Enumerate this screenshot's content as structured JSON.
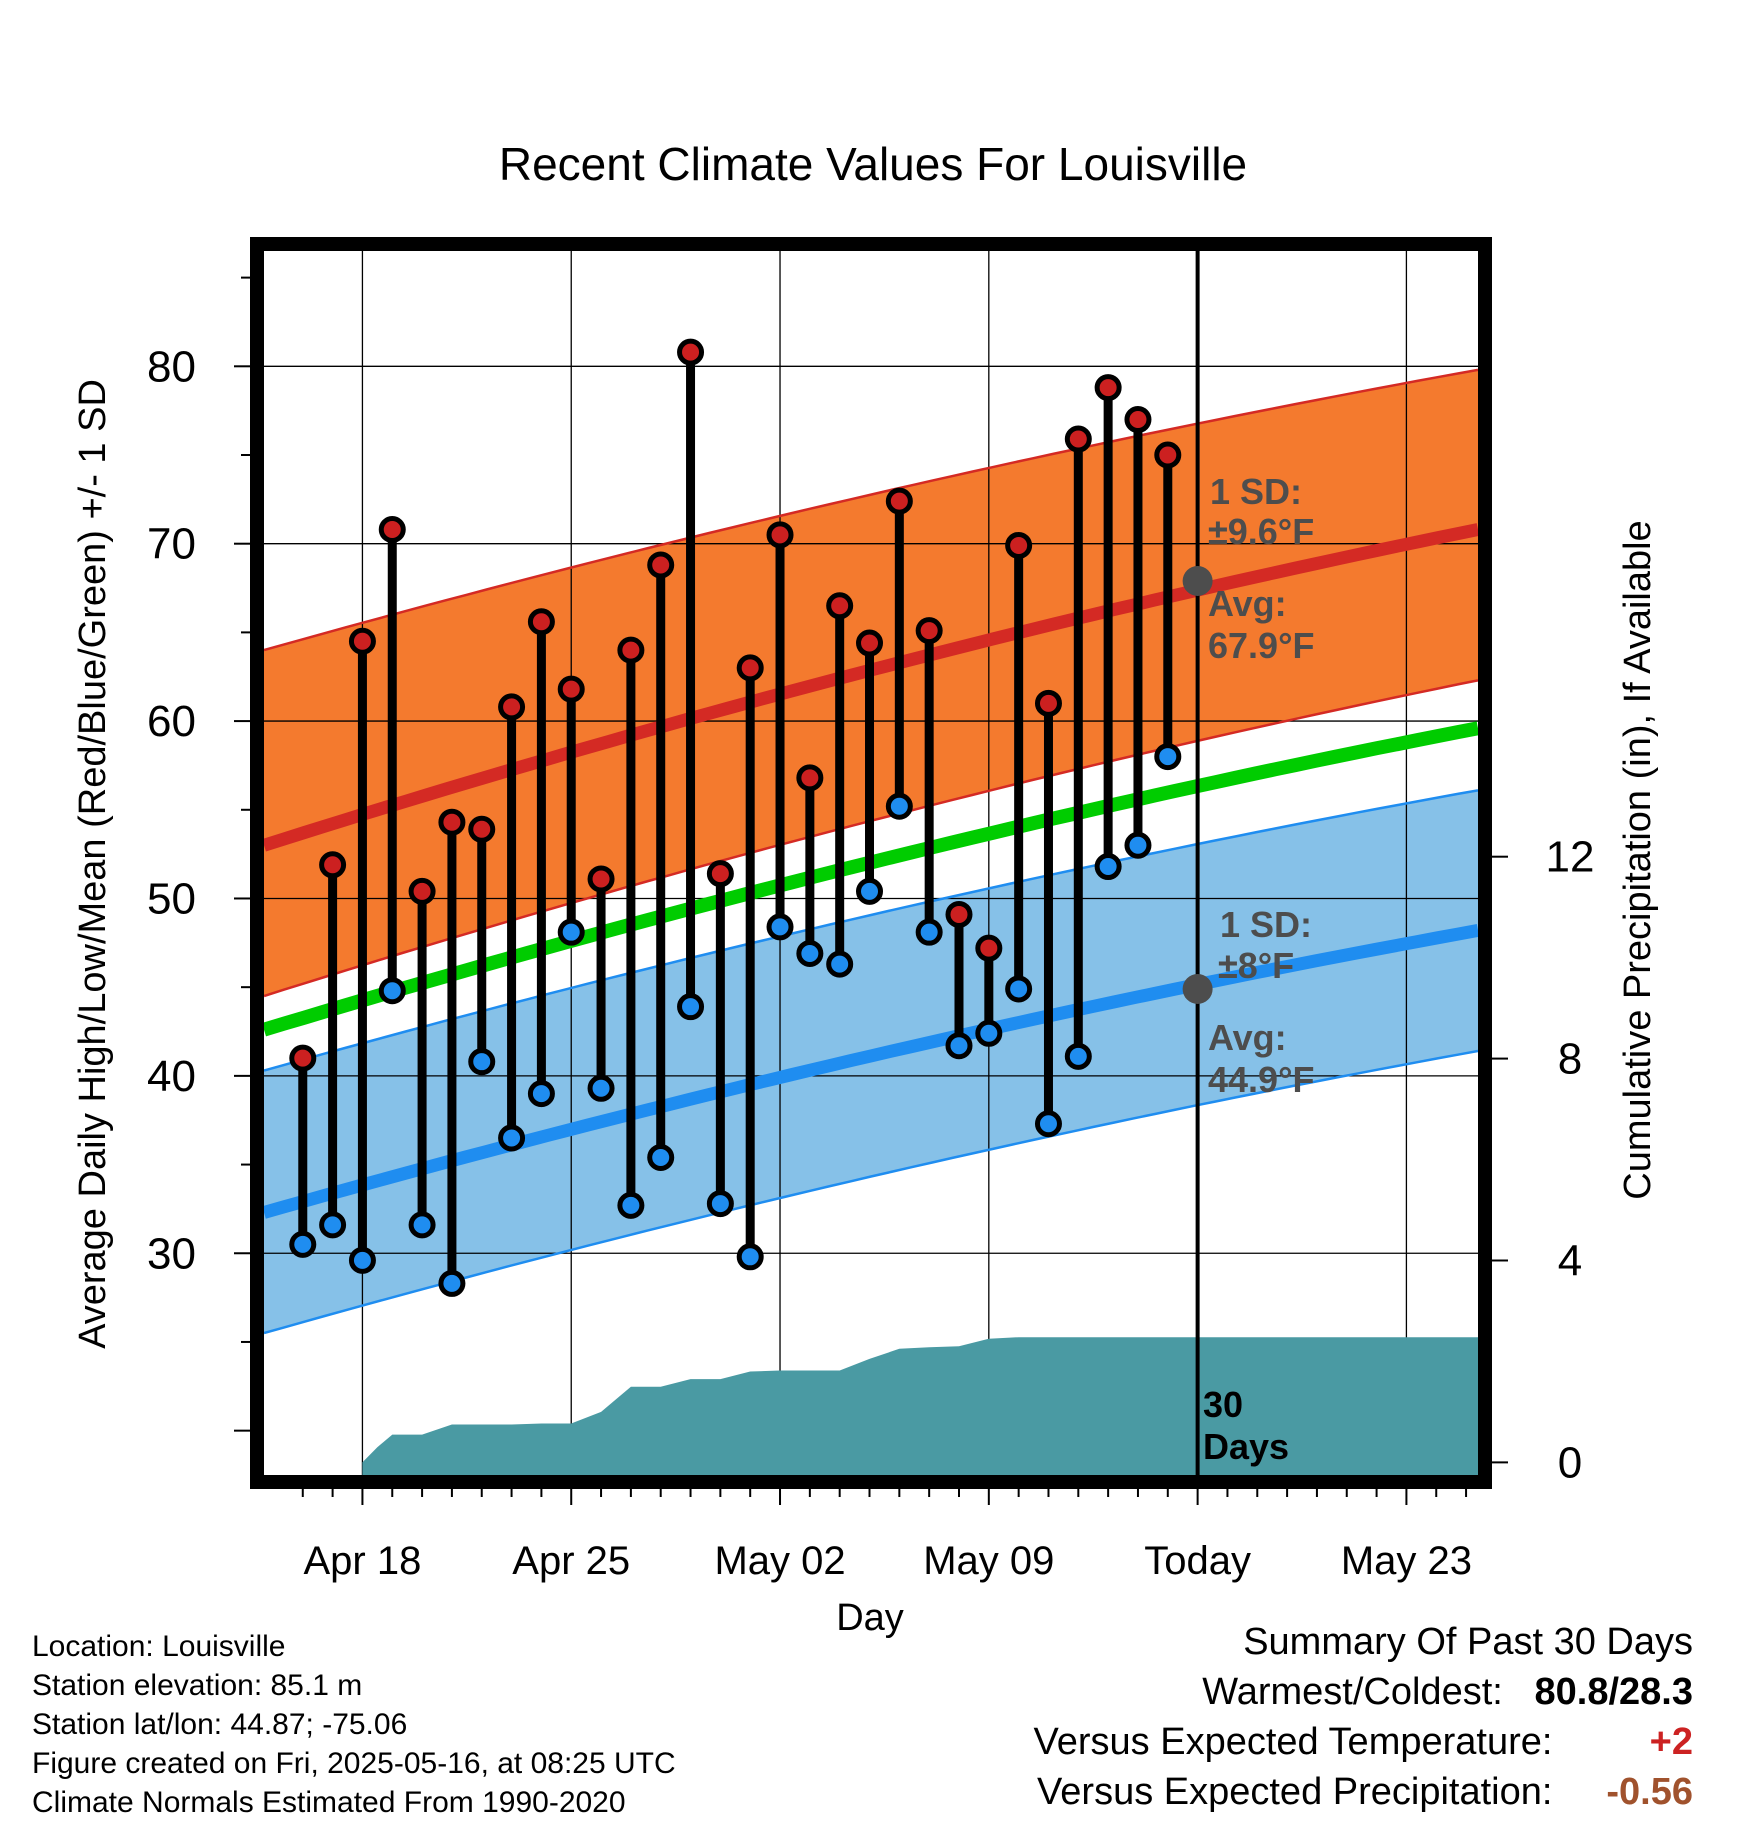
{
  "chart_data": {
    "type": "line",
    "title": "Recent Climate Values For Louisville",
    "xlabel": "Day",
    "ylabel": "Average Daily High/Low/Mean (Red/Blue/Green) +/- 1 SD",
    "y2label": "Cumulative Precipitation (in), If Available",
    "x_tick_labels": [
      "Apr 18",
      "Apr 25",
      "May 02",
      "May 09",
      "Today",
      "May 23"
    ],
    "x_tick_days": [
      0,
      7,
      14,
      21,
      28,
      35
    ],
    "x_range_days": [
      -3.3,
      37.4
    ],
    "start_day_label": "Apr 18",
    "ylim": [
      17.5,
      86.5
    ],
    "yticks": [
      30,
      40,
      50,
      60,
      70,
      80
    ],
    "y2lim": [
      -0.25,
      24.0
    ],
    "y2ticks": [
      0,
      4,
      8,
      12
    ],
    "grid": true,
    "today_day": 28,
    "today_label": "30 Days",
    "normals": {
      "day_start": -3.3,
      "day_end": 37.4,
      "high_avg": [
        53.0,
        70.8
      ],
      "high_sd_upper": [
        64.0,
        79.8
      ],
      "high_sd_lower": [
        44.5,
        62.3
      ],
      "mean": [
        42.6,
        59.6
      ],
      "low_avg": [
        32.3,
        48.2
      ],
      "low_sd_upper": [
        40.3,
        56.1
      ],
      "low_sd_lower": [
        25.5,
        41.4
      ]
    },
    "high_annotation": {
      "sd_label": "1 SD:",
      "sd_value": "±9.6°F",
      "avg_label": "Avg:",
      "avg_value": "67.9°F",
      "avg": 67.9
    },
    "low_annotation": {
      "sd_label": "1 SD:",
      "sd_value": "±8°F",
      "avg_label": "Avg:",
      "avg_value": "44.9°F",
      "avg": 44.9
    },
    "observations": {
      "day": [
        -2,
        -1,
        0,
        1,
        2,
        3,
        4,
        5,
        6,
        7,
        8,
        9,
        10,
        11,
        12,
        13,
        14,
        15,
        16,
        17,
        18,
        19,
        20,
        21,
        22,
        23,
        24,
        25,
        26,
        27
      ],
      "high": [
        41.0,
        51.9,
        64.5,
        70.8,
        50.4,
        54.3,
        53.9,
        60.8,
        65.6,
        61.8,
        51.1,
        64.0,
        68.8,
        80.8,
        51.4,
        63.0,
        70.5,
        56.8,
        66.5,
        64.4,
        72.4,
        65.1,
        49.1,
        47.2,
        69.9,
        61.0,
        75.9,
        78.8,
        77.0,
        75.0
      ],
      "low": [
        30.5,
        31.6,
        29.6,
        44.8,
        31.6,
        28.3,
        40.8,
        36.5,
        39.0,
        48.1,
        39.3,
        32.7,
        35.4,
        43.9,
        32.8,
        29.8,
        48.4,
        46.9,
        46.3,
        50.4,
        55.2,
        48.1,
        41.7,
        42.4,
        44.9,
        37.3,
        41.1,
        51.8,
        53.0,
        58.0
      ]
    },
    "precip_cumulative": {
      "day": [
        0,
        0.5,
        1,
        2,
        3,
        4,
        5,
        6,
        7,
        8,
        9,
        10,
        11,
        12,
        13,
        14,
        15,
        16,
        17,
        18,
        19,
        20,
        21,
        22,
        23,
        24,
        25,
        26,
        27,
        28,
        37.4
      ],
      "value": [
        0,
        0.3,
        0.55,
        0.55,
        0.75,
        0.75,
        0.75,
        0.77,
        0.77,
        1.0,
        1.5,
        1.5,
        1.65,
        1.65,
        1.8,
        1.82,
        1.82,
        1.82,
        2.05,
        2.25,
        2.28,
        2.3,
        2.45,
        2.48,
        2.48,
        2.48,
        2.48,
        2.48,
        2.48,
        2.48,
        2.48
      ]
    },
    "colors": {
      "high_band": "#f47a2e",
      "high_line": "#d42a24",
      "low_band": "#86c1e8",
      "low_line": "#1f8df0",
      "mean_line": "#00cc00",
      "precip_fill": "#4a9aa3",
      "high_dot": "#cc2020",
      "low_dot": "#1f8df0",
      "annotation_text": "#4d4d4d",
      "warm_value": "#cc2222",
      "precip_value": "#a0522d"
    }
  },
  "footer": {
    "location": "Location: Louisville",
    "elevation": "Station elevation: 85.1 m",
    "latlon": "Station lat/lon: 44.87; -75.06",
    "created": "Figure created on Fri, 2025-05-16, at 08:25 UTC",
    "normals": "Climate Normals Estimated From 1990-2020"
  },
  "summary": {
    "title": "Summary Of Past 30 Days",
    "warmest_coldest_label": "Warmest/Coldest:",
    "warmest_coldest_value": "80.8/28.3",
    "temp_label": "Versus Expected Temperature:",
    "temp_value": "+2",
    "precip_label": "Versus Expected Precipitation:",
    "precip_value": "-0.56"
  }
}
